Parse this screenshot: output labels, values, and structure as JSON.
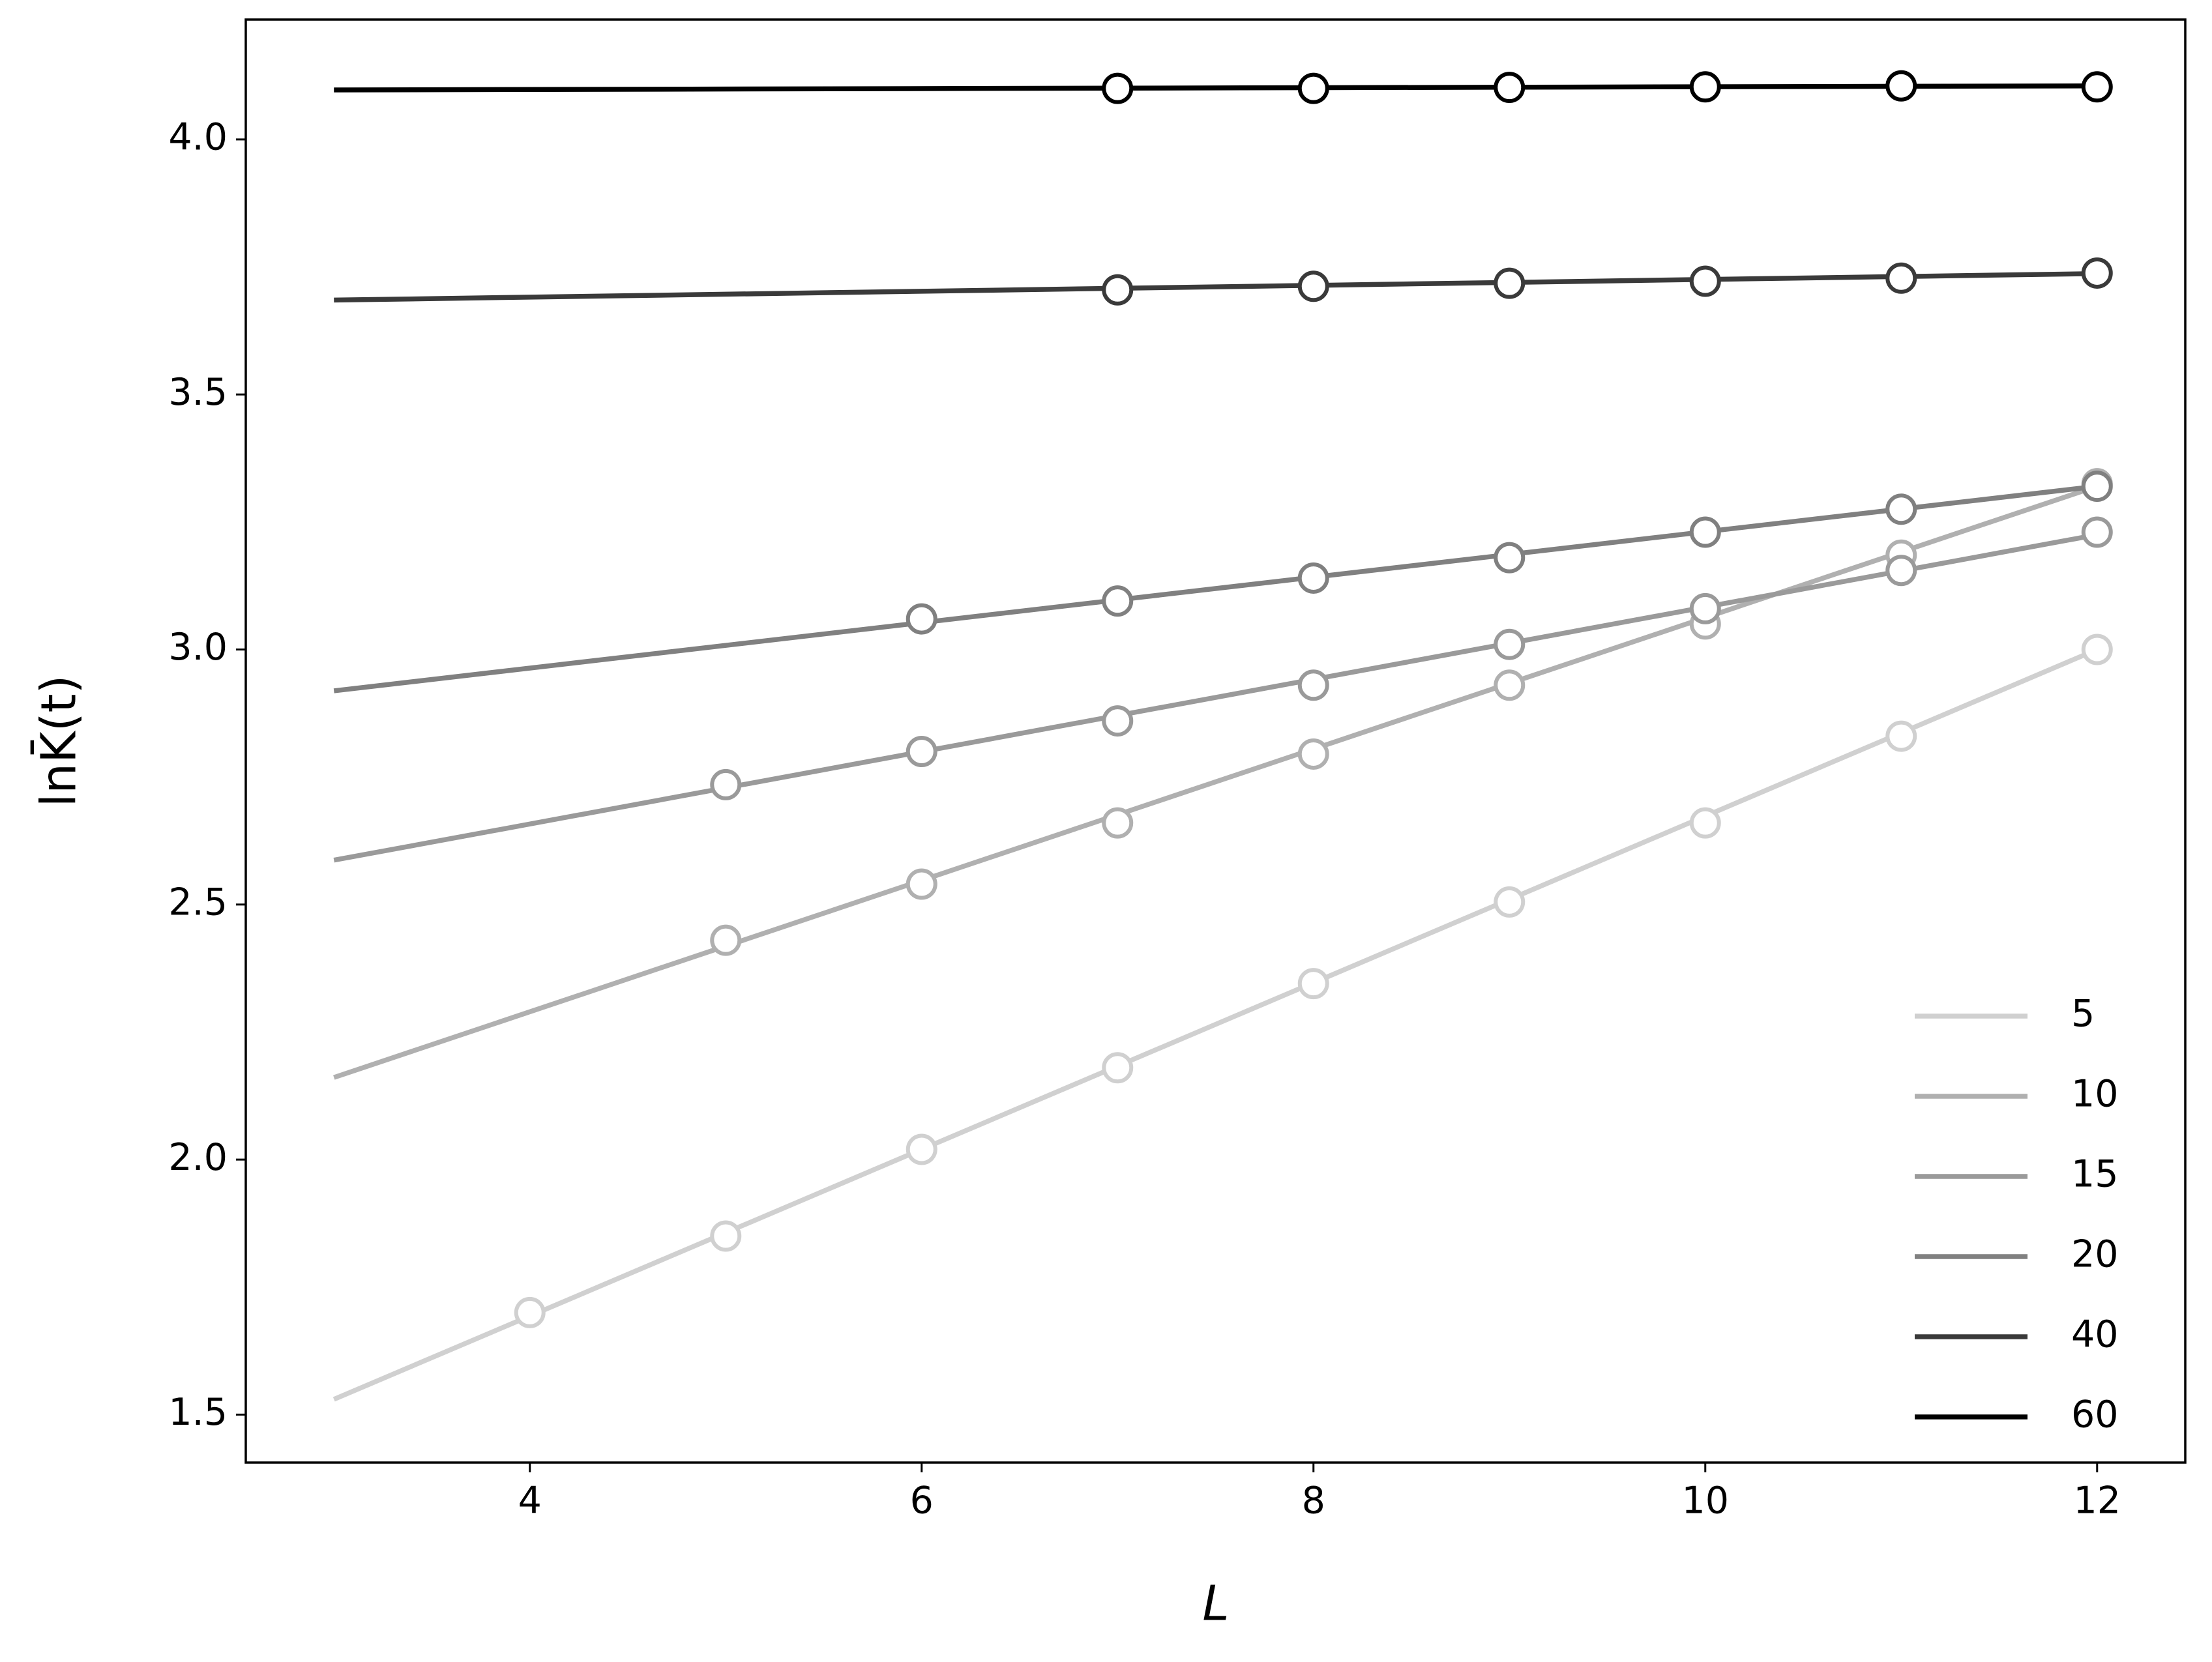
{
  "chart_data": {
    "type": "line",
    "xlabel": "L",
    "ylabel": "lnK̄(t)",
    "xlim": [
      2.55,
      12.45
    ],
    "ylim": [
      1.406,
      4.235
    ],
    "xticks": [
      4,
      6,
      8,
      10,
      12
    ],
    "yticks": [
      1.5,
      {
        "value": 2,
        "label": "2.0"
      },
      2.5,
      {
        "value": 3,
        "label": "3.0"
      },
      3.5,
      {
        "value": 4,
        "label": "4.0"
      }
    ],
    "legend": "lower right",
    "series": [
      {
        "name": "5",
        "color": "#d0d0d0",
        "x": [
          4,
          5,
          6,
          7,
          8,
          9,
          10,
          11,
          12
        ],
        "values": [
          1.7,
          1.85,
          2.02,
          2.18,
          2.345,
          2.505,
          2.66,
          2.83,
          3.0
        ],
        "fit_x": [
          3,
          12
        ],
        "fit_values": [
          1.53,
          3.0
        ]
      },
      {
        "name": "10",
        "color": "#b0b0b0",
        "x": [
          5,
          6,
          7,
          8,
          9,
          10,
          11,
          12
        ],
        "values": [
          2.43,
          2.54,
          2.66,
          2.795,
          2.93,
          3.05,
          3.185,
          3.325
        ],
        "fit_x": [
          3,
          12
        ],
        "fit_values": [
          2.161,
          3.32
        ]
      },
      {
        "name": "15",
        "color": "#9a9a9a",
        "x": [
          5,
          6,
          7,
          8,
          9,
          10,
          11,
          12
        ],
        "values": [
          2.735,
          2.8,
          2.86,
          2.93,
          3.01,
          3.08,
          3.155,
          3.23
        ],
        "fit_x": [
          3,
          12
        ],
        "fit_values": [
          2.587,
          3.225
        ]
      },
      {
        "name": "20",
        "color": "#808080",
        "x": [
          6,
          7,
          8,
          9,
          10,
          11,
          12
        ],
        "values": [
          3.06,
          3.095,
          3.14,
          3.18,
          3.23,
          3.275,
          3.32
        ],
        "fit_x": [
          3,
          12
        ],
        "fit_values": [
          2.919,
          3.32
        ]
      },
      {
        "name": "40",
        "color": "#3a3a3a",
        "x": [
          7,
          8,
          9,
          10,
          11,
          12
        ],
        "values": [
          3.705,
          3.712,
          3.718,
          3.722,
          3.728,
          3.738
        ],
        "fit_x": [
          3,
          12
        ],
        "fit_values": [
          3.685,
          3.737
        ]
      },
      {
        "name": "60",
        "color": "#000000",
        "x": [
          7,
          8,
          9,
          10,
          11,
          12
        ],
        "values": [
          4.1,
          4.1,
          4.102,
          4.103,
          4.105,
          4.103
        ],
        "fit_x": [
          3,
          12
        ],
        "fit_values": [
          4.097,
          4.105
        ]
      }
    ]
  }
}
